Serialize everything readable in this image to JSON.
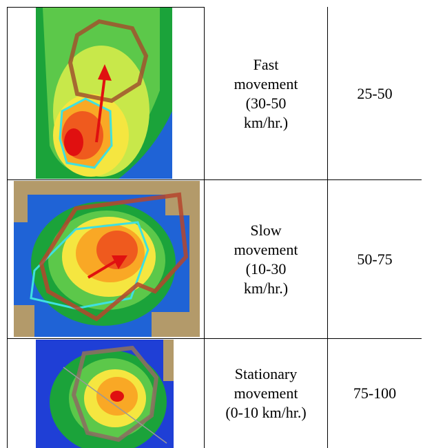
{
  "table": {
    "rows": [
      {
        "description": [
          "Fast",
          "movement",
          "(30-50",
          "km/hr.)"
        ],
        "range": "25-50"
      },
      {
        "description": [
          "Slow",
          "movement",
          "(10-30",
          "km/hr.)"
        ],
        "range": "50-75"
      },
      {
        "description": [
          "Stationary",
          "movement",
          "(0-10 km/hr.)"
        ],
        "range": "75-100"
      }
    ]
  }
}
